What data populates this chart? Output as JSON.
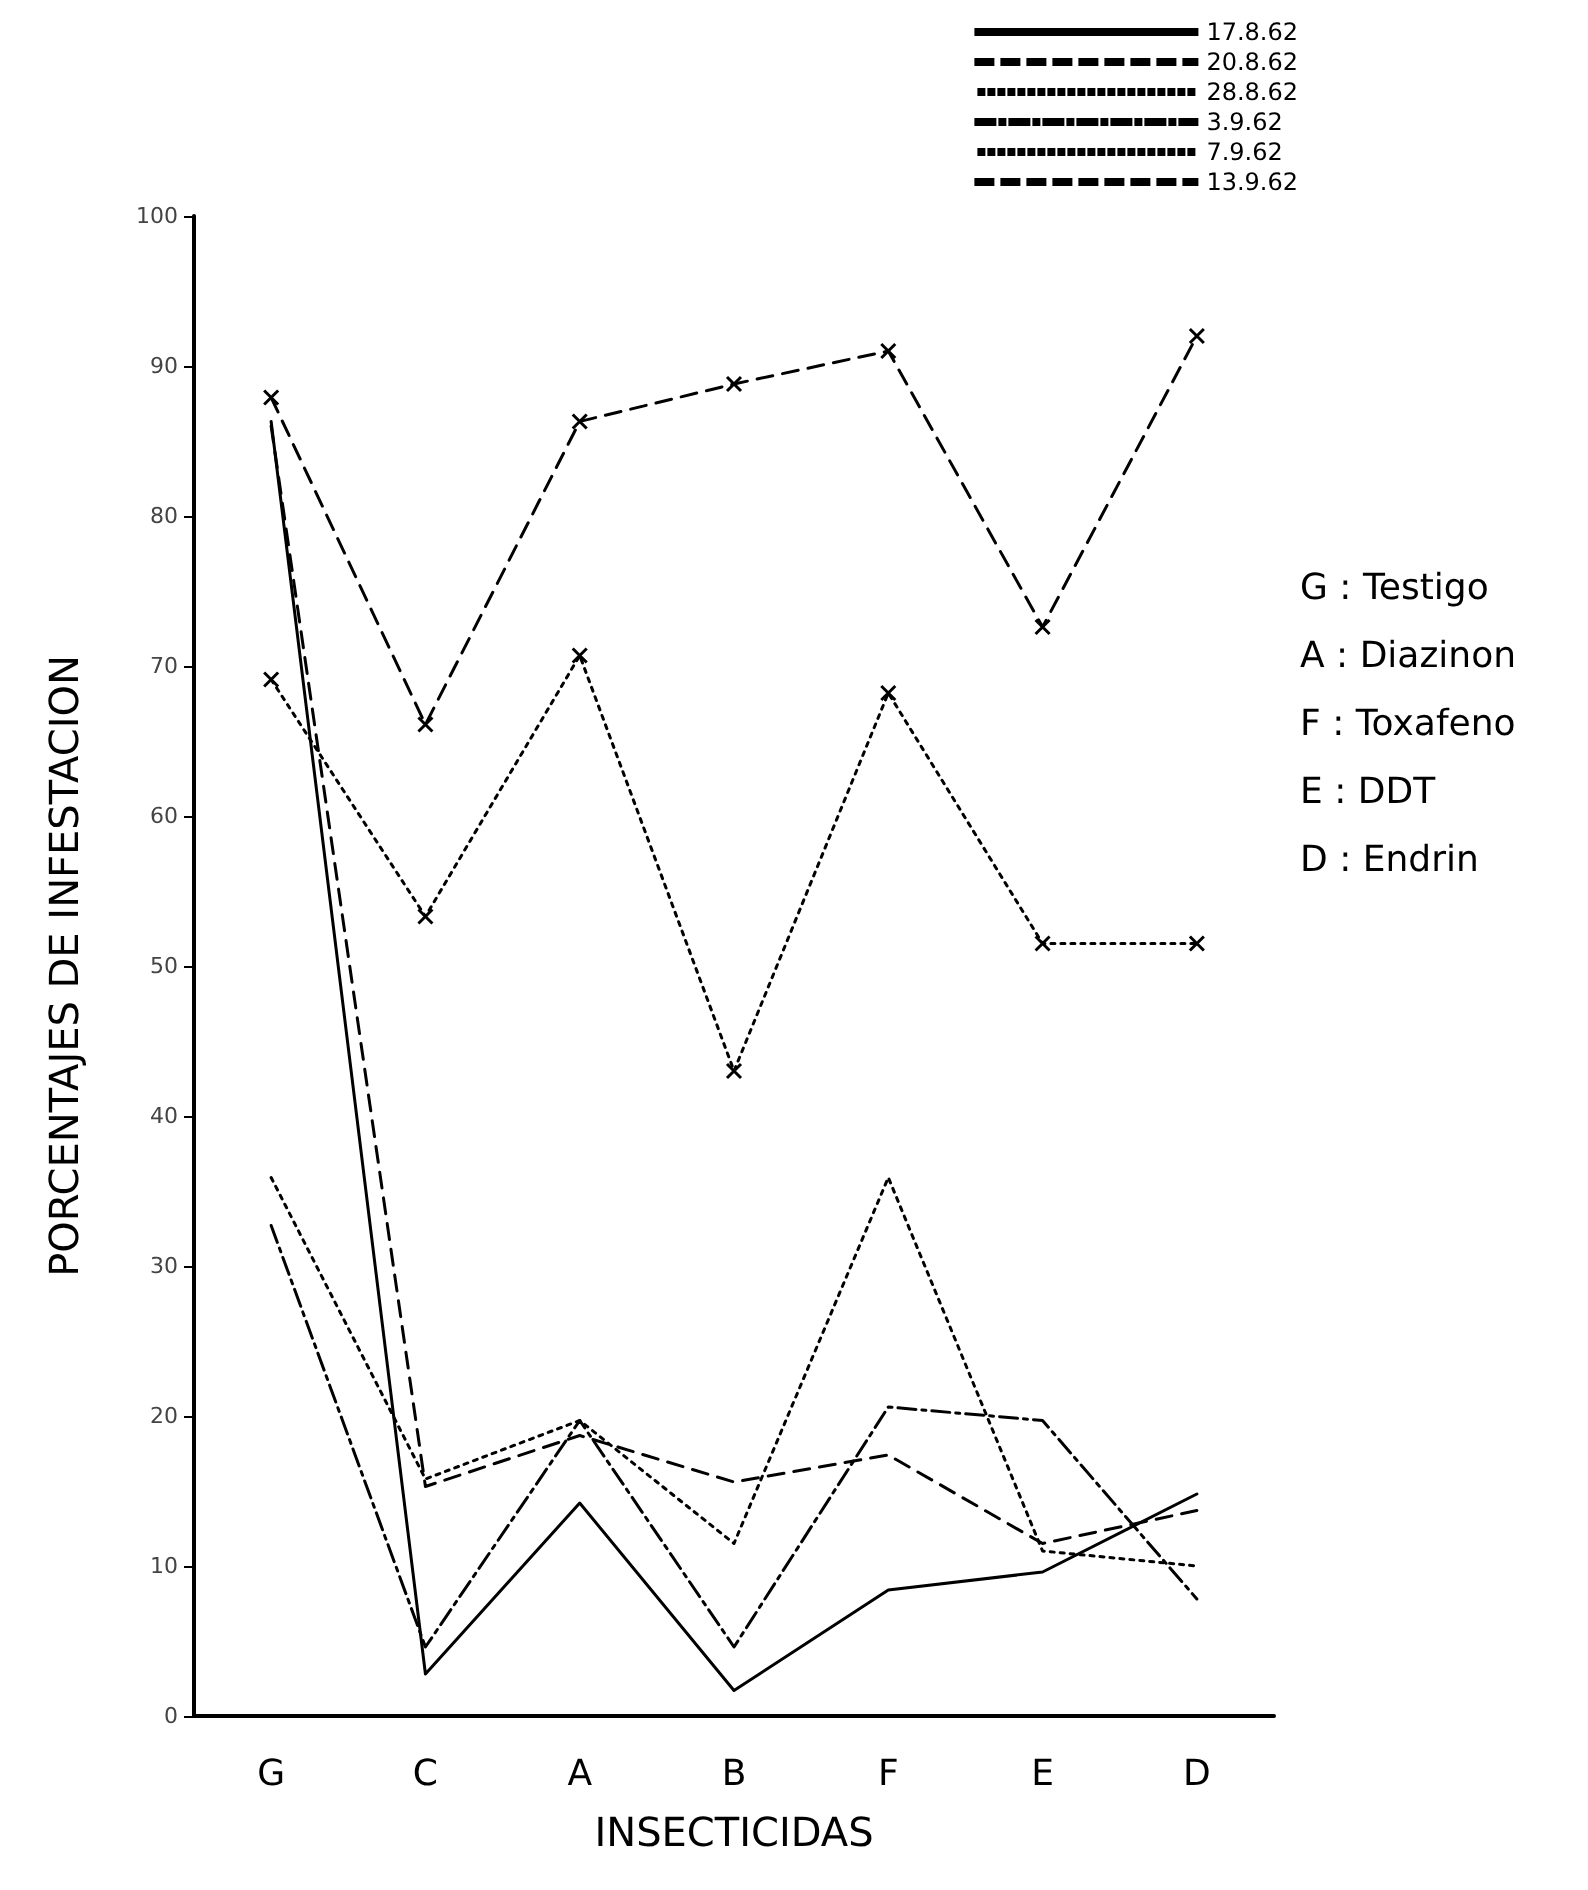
{
  "chart_data": {
    "type": "line",
    "xlabel": "INSECTICIDAS",
    "ylabel": "PORCENTAJES DE INFESTACION",
    "categories": [
      "G",
      "C",
      "A",
      "B",
      "F",
      "E",
      "D"
    ],
    "ylim": [
      0,
      100
    ],
    "yticks": [
      0,
      10,
      20,
      30,
      40,
      50,
      60,
      70,
      80,
      90,
      100
    ],
    "grid": false,
    "legend": "top right",
    "series": [
      {
        "name": "17.8.62",
        "color": "#000000",
        "line_style": "solid",
        "marker": "none",
        "values": [
          86.3,
          2.8,
          14.2,
          1.7,
          8.4,
          9.6,
          14.8
        ]
      },
      {
        "name": "20.8.62",
        "color": "#000000",
        "line_style": "dashed",
        "marker": "none",
        "values": [
          86,
          15.3,
          18.7,
          15.6,
          17.4,
          11.5,
          13.7
        ]
      },
      {
        "name": "28.8.62",
        "color": "#000000",
        "line_style": "dotted",
        "marker": "none",
        "values": [
          35.9,
          15.8,
          19.7,
          11.5,
          35.9,
          11,
          10
        ]
      },
      {
        "name": "3.9.62",
        "color": "#000000",
        "line_style": "dashdot",
        "marker": "none",
        "values": [
          32.7,
          4.6,
          19.7,
          4.6,
          20.6,
          19.7,
          7.8
        ]
      },
      {
        "name": "7.9.62",
        "color": "#000000",
        "line_style": "dotted",
        "marker": "cross",
        "values": [
          69.1,
          53.3,
          70.7,
          43,
          68.2,
          51.5,
          51.5
        ]
      },
      {
        "name": "13.9.62",
        "color": "#000000",
        "line_style": "dashed",
        "marker": "cross",
        "values": [
          87.9,
          66.1,
          86.3,
          88.8,
          91,
          72.6,
          92
        ]
      }
    ],
    "annotations": [
      "G : Testigo",
      "A : Diazinon",
      "F : Toxafeno",
      "E : DDT",
      "D : Endrin"
    ]
  }
}
